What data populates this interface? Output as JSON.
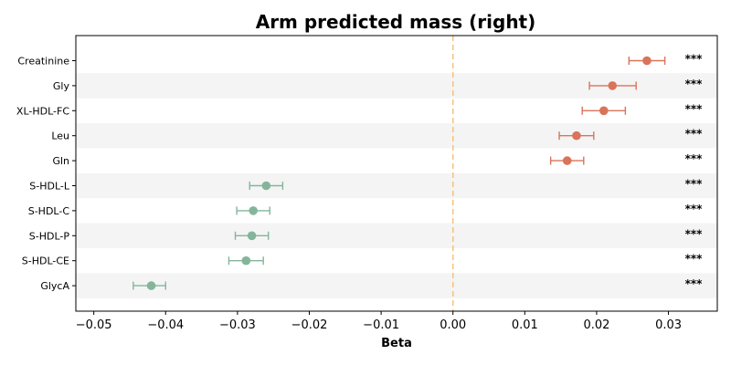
{
  "chart_data": {
    "type": "scatter",
    "title": "Arm predicted mass (right)",
    "xlabel": "Beta",
    "ylabel": "",
    "xlim": [
      -0.0525,
      0.0368
    ],
    "xticks": [
      -0.05,
      -0.04,
      -0.03,
      -0.02,
      -0.01,
      0.0,
      0.01,
      0.02,
      0.03
    ],
    "xtick_labels": [
      "−0.05",
      "−0.04",
      "−0.03",
      "−0.02",
      "−0.01",
      "0.00",
      "0.01",
      "0.02",
      "0.03"
    ],
    "reference_line_x": 0.0,
    "grid": false,
    "alternating_row_shading": true,
    "positive_color": "#d9745a",
    "negative_color": "#84b59b",
    "reference_line_color": "#f5c27c",
    "points": [
      {
        "category": "Creatinine",
        "beta": 0.027,
        "ci_low": 0.0245,
        "ci_high": 0.0295,
        "significance": "***"
      },
      {
        "category": "Gly",
        "beta": 0.0222,
        "ci_low": 0.019,
        "ci_high": 0.0255,
        "significance": "***"
      },
      {
        "category": "XL-HDL-FC",
        "beta": 0.021,
        "ci_low": 0.018,
        "ci_high": 0.024,
        "significance": "***"
      },
      {
        "category": "Leu",
        "beta": 0.0172,
        "ci_low": 0.0148,
        "ci_high": 0.0196,
        "significance": "***"
      },
      {
        "category": "Gln",
        "beta": 0.0159,
        "ci_low": 0.0136,
        "ci_high": 0.0182,
        "significance": "***"
      },
      {
        "category": "S-HDL-L",
        "beta": -0.026,
        "ci_low": -0.0283,
        "ci_high": -0.0237,
        "significance": "***"
      },
      {
        "category": "S-HDL-C",
        "beta": -0.0278,
        "ci_low": -0.0301,
        "ci_high": -0.0255,
        "significance": "***"
      },
      {
        "category": "S-HDL-P",
        "beta": -0.028,
        "ci_low": -0.0303,
        "ci_high": -0.0257,
        "significance": "***"
      },
      {
        "category": "S-HDL-CE",
        "beta": -0.0288,
        "ci_low": -0.0312,
        "ci_high": -0.0264,
        "significance": "***"
      },
      {
        "category": "GlycA",
        "beta": -0.042,
        "ci_low": -0.0445,
        "ci_high": -0.04,
        "significance": "***"
      }
    ]
  }
}
